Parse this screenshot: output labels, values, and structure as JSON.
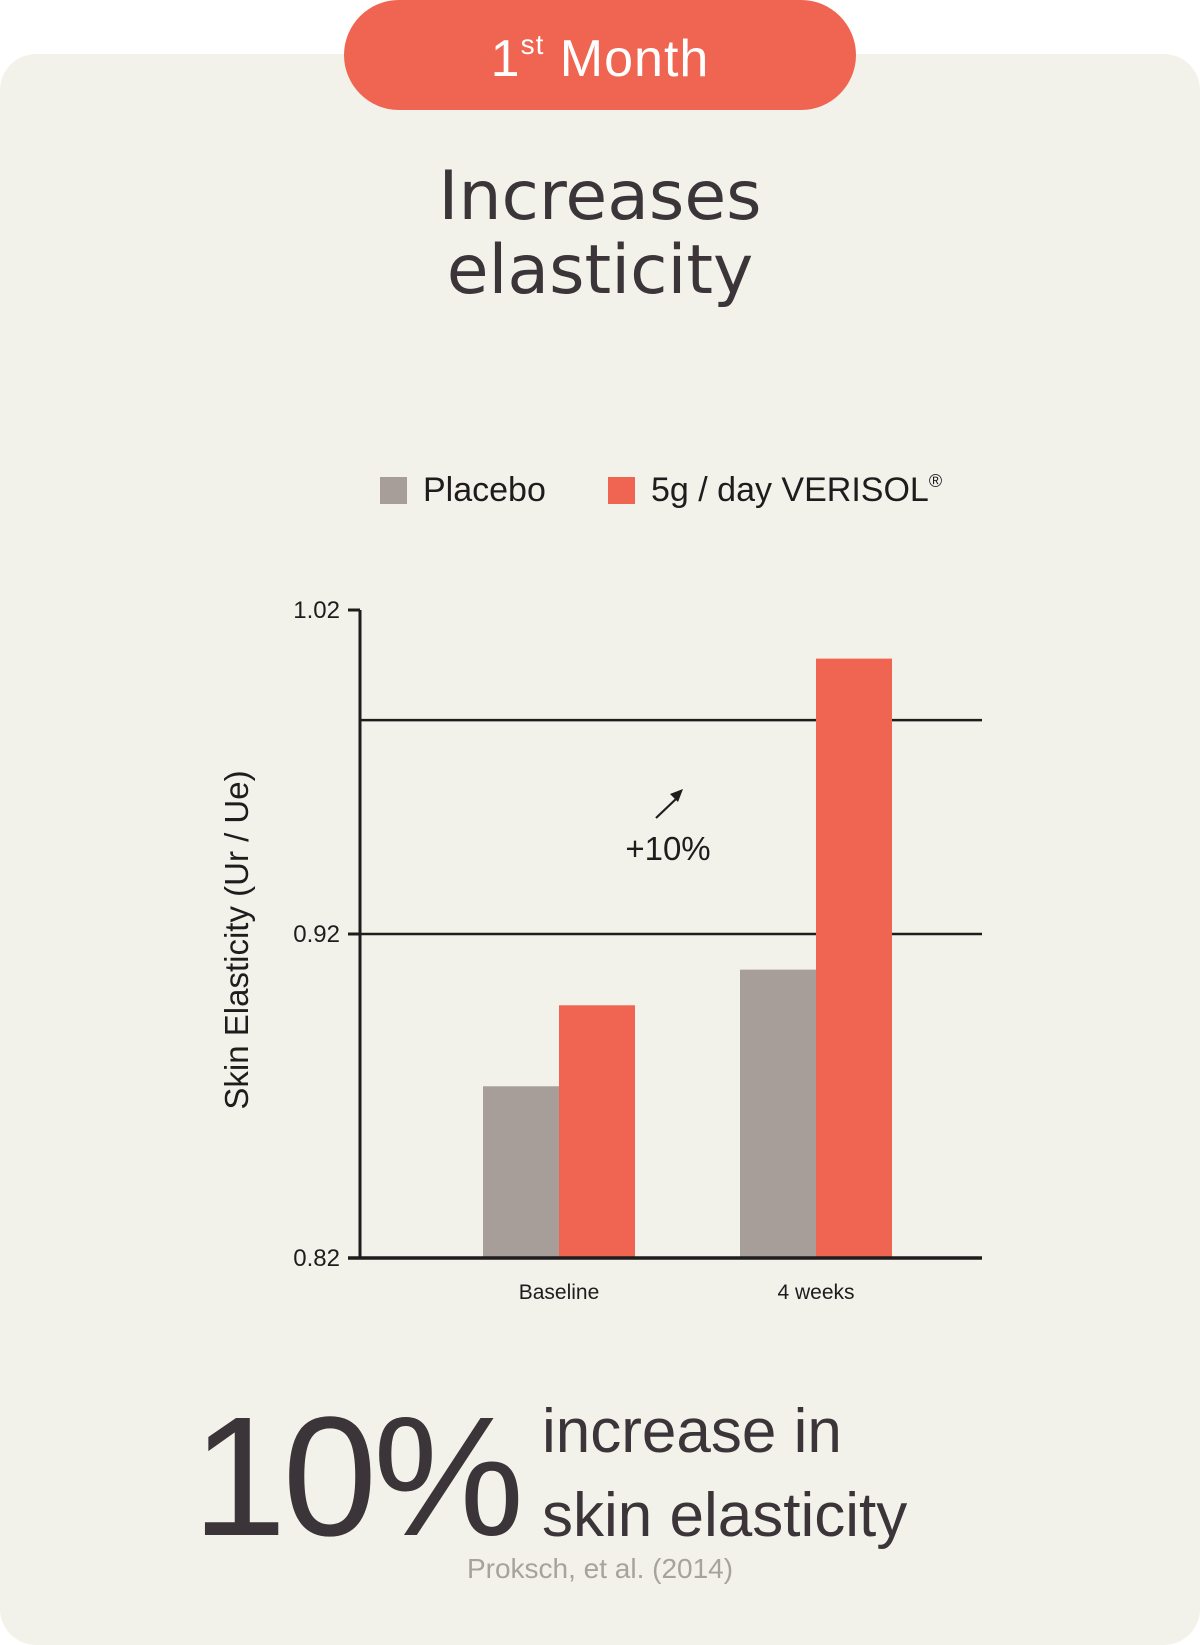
{
  "badge": {
    "main": "1",
    "superscript": "st",
    "word": " Month"
  },
  "headline": {
    "line1": "Increases",
    "line2": "elasticity"
  },
  "legend": {
    "placebo_label": "Placebo",
    "treatment_label": "5g / day VERISOL",
    "treatment_mark": "®"
  },
  "colors": {
    "placebo": "#a89e99",
    "treatment": "#ef6551",
    "accent": "#ef6551",
    "card": "#f3f2ea",
    "text": "#3b3438"
  },
  "chart_data": {
    "type": "bar",
    "categories": [
      "Baseline",
      "4 weeks"
    ],
    "series": [
      {
        "name": "Placebo",
        "values": [
          0.873,
          0.909
        ]
      },
      {
        "name": "5g / day VERISOL®",
        "values": [
          0.898,
          1.005
        ]
      }
    ],
    "ylabel": "Skin Elasticity (Ur / Ue)",
    "xlabel": "",
    "ylim": [
      0.82,
      1.02
    ],
    "yticks": [
      "0.82",
      "0.92",
      "1.02"
    ],
    "ytick_values": [
      0.82,
      0.92,
      1.02
    ],
    "reference_lines": [
      0.92,
      0.986
    ],
    "annotation": "+10%",
    "legend_position": "top"
  },
  "stat": {
    "value": "10%",
    "line1": "increase in",
    "line2": "skin elasticity"
  },
  "citation": "Proksch, et al. (2014)"
}
